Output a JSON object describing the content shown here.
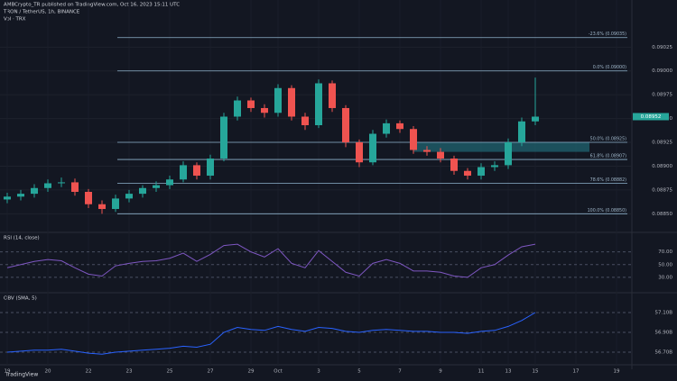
{
  "header": {
    "publisher": "AMBCrypto_TR published on TradingView.com, Oct 16, 2023 15:11 UTC",
    "symbol": "TRON / TetherUS, 1h, BINANCE",
    "volume_label": "Vol · TRX",
    "footer": "TradingView"
  },
  "chart_data": [
    {
      "type": "candlestick",
      "up_color": "#26a69a",
      "down_color": "#ef5350",
      "open": [
        0.08865,
        0.08868,
        0.08871,
        0.08877,
        0.08882,
        0.08883,
        0.08873,
        0.0886,
        0.08855,
        0.08866,
        0.08871,
        0.08877,
        0.0888,
        0.08886,
        0.08901,
        0.0889,
        0.08908,
        0.08952,
        0.08969,
        0.08961,
        0.08956,
        0.08982,
        0.08952,
        0.08943,
        0.08987,
        0.08961,
        0.08925,
        0.08904,
        0.08934,
        0.08945,
        0.08939,
        0.08917,
        0.08915,
        0.08908,
        0.08895,
        0.0889,
        0.08899,
        0.08901,
        0.08925,
        0.08947
      ],
      "high": [
        0.08872,
        0.08875,
        0.08881,
        0.08886,
        0.08888,
        0.08887,
        0.08876,
        0.08864,
        0.0887,
        0.08875,
        0.0888,
        0.08884,
        0.0889,
        0.08905,
        0.08904,
        0.08912,
        0.08956,
        0.08973,
        0.08972,
        0.08965,
        0.08986,
        0.08985,
        0.08956,
        0.08991,
        0.0899,
        0.08964,
        0.08928,
        0.08938,
        0.08949,
        0.08948,
        0.08942,
        0.08921,
        0.08919,
        0.08911,
        0.08898,
        0.08903,
        0.08905,
        0.08929,
        0.08951,
        0.08993
      ],
      "low": [
        0.08861,
        0.08864,
        0.08867,
        0.08873,
        0.08878,
        0.08869,
        0.08856,
        0.0885,
        0.08852,
        0.08862,
        0.08867,
        0.08873,
        0.08876,
        0.08883,
        0.08886,
        0.08886,
        0.08905,
        0.08948,
        0.08957,
        0.08951,
        0.08952,
        0.08948,
        0.08938,
        0.0894,
        0.08957,
        0.0892,
        0.08899,
        0.08901,
        0.0893,
        0.08935,
        0.08913,
        0.08911,
        0.08904,
        0.08891,
        0.08886,
        0.08886,
        0.08895,
        0.08897,
        0.08921,
        0.08943
      ],
      "close": [
        0.08868,
        0.08871,
        0.08877,
        0.08882,
        0.08883,
        0.08873,
        0.0886,
        0.08855,
        0.08866,
        0.08871,
        0.08877,
        0.0888,
        0.08886,
        0.08901,
        0.0889,
        0.08908,
        0.08952,
        0.08969,
        0.08961,
        0.08956,
        0.08982,
        0.08952,
        0.08943,
        0.08987,
        0.08961,
        0.08925,
        0.08904,
        0.08934,
        0.08945,
        0.08939,
        0.08917,
        0.08915,
        0.08908,
        0.08895,
        0.0889,
        0.08899,
        0.08901,
        0.08925,
        0.08947,
        0.08952
      ],
      "ylim": [
        0.08838,
        0.09048
      ],
      "yticks": [
        {
          "value": 0.0885,
          "label": "0.08850"
        },
        {
          "value": 0.08875,
          "label": "0.08875"
        },
        {
          "value": 0.089,
          "label": "0.08900"
        },
        {
          "value": 0.08925,
          "label": "0.08925"
        },
        {
          "value": 0.0895,
          "label": "0.08950"
        },
        {
          "value": 0.08975,
          "label": "0.08975"
        },
        {
          "value": 0.09,
          "label": "0.09000"
        },
        {
          "value": 0.09025,
          "label": "0.09025"
        }
      ],
      "xticks": [
        {
          "value": 0,
          "label": "19"
        },
        {
          "value": 3,
          "label": "20"
        },
        {
          "value": 6,
          "label": "22"
        },
        {
          "value": 9,
          "label": "23"
        },
        {
          "value": 12,
          "label": "25"
        },
        {
          "value": 15,
          "label": "27"
        },
        {
          "value": 18,
          "label": "29"
        },
        {
          "value": 20,
          "label": "Oct"
        },
        {
          "value": 23,
          "label": "3"
        },
        {
          "value": 26,
          "label": "5"
        },
        {
          "value": 29,
          "label": "7"
        },
        {
          "value": 32,
          "label": "9"
        },
        {
          "value": 35,
          "label": "11"
        },
        {
          "value": 37,
          "label": "13"
        },
        {
          "value": 39,
          "label": "15"
        },
        {
          "value": 42,
          "label": "17"
        },
        {
          "value": 45,
          "label": "19"
        }
      ],
      "fib_levels": [
        {
          "value": 0.09035,
          "label": "-23.6% (0.09035)"
        },
        {
          "value": 0.09,
          "label": "0.0% (0.09000)"
        },
        {
          "value": 0.08925,
          "label": "50.0% (0.08925)"
        },
        {
          "value": 0.08907,
          "label": "61.8% (0.08907)"
        },
        {
          "value": 0.08882,
          "label": "78.6% (0.08882)"
        },
        {
          "value": 0.0885,
          "label": "100.0% (0.08850)"
        }
      ],
      "fib_color": "#8fb3cc",
      "zone": {
        "from": 0.08915,
        "to": 0.08925,
        "x_start": 30,
        "x_end": 43,
        "color": "#1f5f6b"
      }
    },
    {
      "type": "line",
      "title": "RSI (14, close)",
      "color": "#7e57c2",
      "values": [
        45,
        50,
        55,
        58,
        56,
        45,
        35,
        32,
        48,
        52,
        55,
        56,
        60,
        68,
        55,
        66,
        80,
        82,
        70,
        62,
        75,
        52,
        45,
        72,
        55,
        38,
        32,
        52,
        58,
        52,
        40,
        40,
        38,
        32,
        30,
        45,
        50,
        65,
        78,
        82
      ],
      "ylim": [
        10,
        95
      ],
      "yticks": [
        {
          "value": 30,
          "label": "30.00"
        },
        {
          "value": 50,
          "label": "50.00"
        },
        {
          "value": 70,
          "label": "70.00"
        }
      ]
    },
    {
      "type": "line",
      "title": "OBV (SMA, 5)",
      "color": "#2962ff",
      "values": [
        56.7,
        56.71,
        56.72,
        56.72,
        56.73,
        56.71,
        56.69,
        56.68,
        56.7,
        56.71,
        56.72,
        56.73,
        56.74,
        56.76,
        56.75,
        56.78,
        56.9,
        56.95,
        56.93,
        56.92,
        56.96,
        56.93,
        56.91,
        56.95,
        56.94,
        56.91,
        56.9,
        56.92,
        56.93,
        56.92,
        56.91,
        56.91,
        56.9,
        56.9,
        56.89,
        56.91,
        56.92,
        56.96,
        57.02,
        57.1
      ],
      "ylim": [
        56.6,
        57.2
      ],
      "yticks": [
        {
          "value": 56.7,
          "label": "56.70B"
        },
        {
          "value": 56.9,
          "label": "56.90B"
        },
        {
          "value": 57.1,
          "label": "57.10B"
        }
      ]
    }
  ]
}
